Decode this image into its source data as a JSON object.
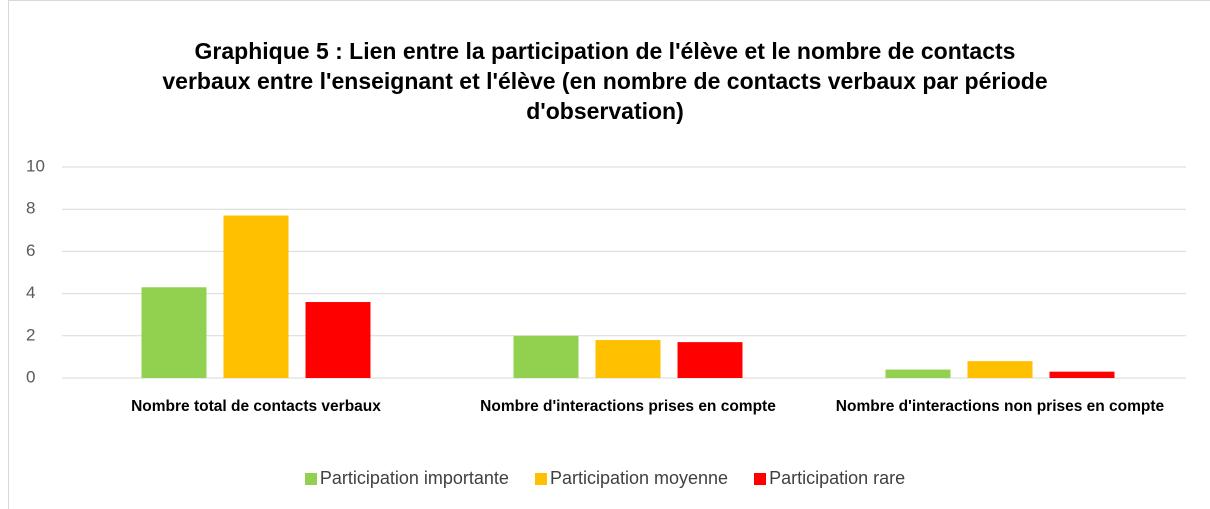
{
  "chart_data": {
    "type": "bar",
    "title": "Graphique 5 : Lien entre la participation de l'élève et le nombre de contacts verbaux entre l'enseignant et l'élève (en nombre de contacts verbaux par période d'observation)",
    "categories": [
      "Nombre total de contacts verbaux",
      "Nombre d'interactions prises en compte",
      "Nombre d'interactions non prises en compte"
    ],
    "series": [
      {
        "name": "Participation importante",
        "color": "#92d050",
        "values": [
          4.3,
          2.0,
          0.4
        ]
      },
      {
        "name": "Participation moyenne",
        "color": "#ffc000",
        "values": [
          7.7,
          1.8,
          0.8
        ]
      },
      {
        "name": "Participation rare",
        "color": "#ff0000",
        "values": [
          3.6,
          1.7,
          0.3
        ]
      }
    ],
    "ylim": [
      0,
      10
    ],
    "yticks": [
      0,
      2,
      4,
      6,
      8,
      10
    ],
    "grid": true,
    "legend": "bottom"
  }
}
